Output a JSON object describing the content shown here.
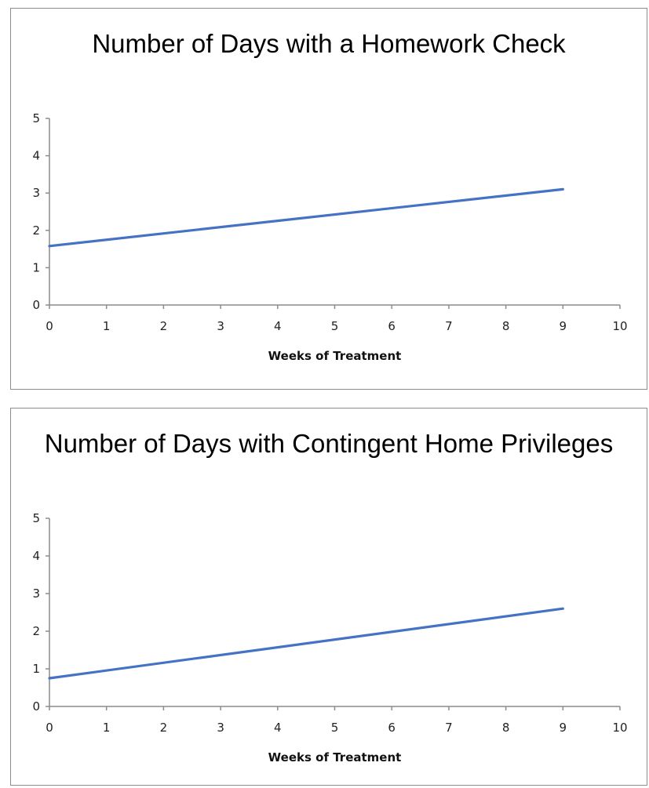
{
  "chart_data": [
    {
      "type": "line",
      "title": "Number of Days with a Homework Check",
      "xlabel": "Weeks of Treatment",
      "ylabel": "",
      "xlim": [
        0,
        10
      ],
      "ylim": [
        0,
        5
      ],
      "x_ticks": [
        "0",
        "1",
        "2",
        "3",
        "4",
        "5",
        "6",
        "7",
        "8",
        "9",
        "10"
      ],
      "y_ticks": [
        "0",
        "1",
        "2",
        "3",
        "4",
        "5"
      ],
      "grid": false,
      "legend": "none",
      "series": [
        {
          "x": [
            0,
            9
          ],
          "y": [
            1.58,
            3.1
          ],
          "color": "#4472c4"
        }
      ]
    },
    {
      "type": "line",
      "title": "Number of Days with Contingent Home Privileges",
      "xlabel": "Weeks of Treatment",
      "ylabel": "",
      "xlim": [
        0,
        10
      ],
      "ylim": [
        0,
        5
      ],
      "x_ticks": [
        "0",
        "1",
        "2",
        "3",
        "4",
        "5",
        "6",
        "7",
        "8",
        "9",
        "10"
      ],
      "y_ticks": [
        "0",
        "1",
        "2",
        "3",
        "4",
        "5"
      ],
      "grid": false,
      "legend": "none",
      "series": [
        {
          "x": [
            0,
            9
          ],
          "y": [
            0.75,
            2.6
          ],
          "color": "#4472c4"
        }
      ]
    }
  ]
}
